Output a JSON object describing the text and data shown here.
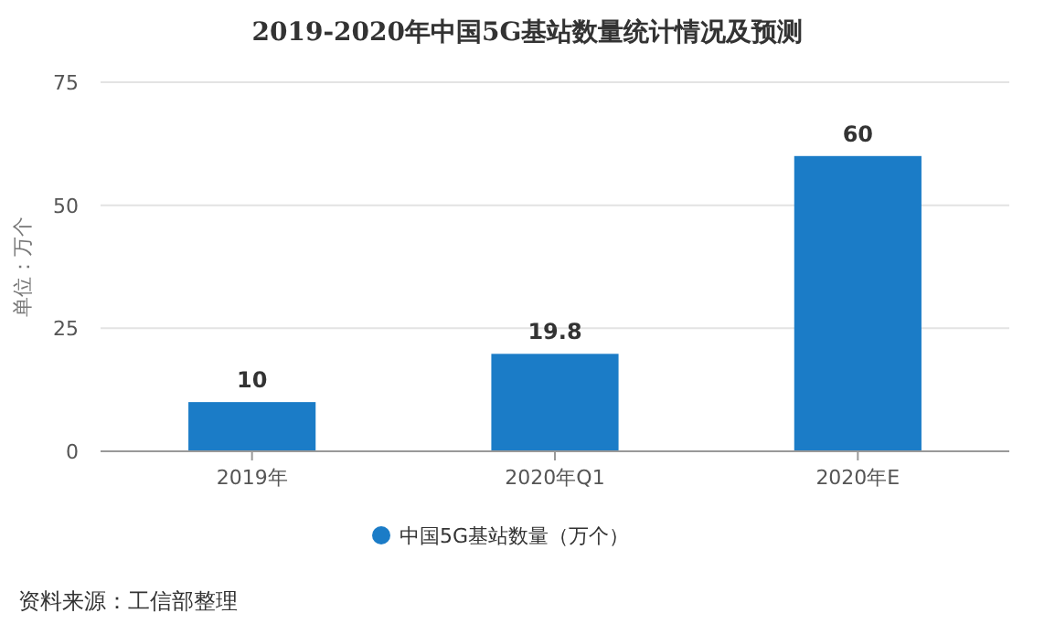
{
  "chart_data": {
    "type": "bar",
    "title": "2019-2020年中国5G基站数量统计情况及预测",
    "ylabel": "单位：万个",
    "categories": [
      "2019年",
      "2020年Q1",
      "2020年E"
    ],
    "series": [
      {
        "name": "中国5G基站数量（万个）",
        "color": "#1b7cc7",
        "values": [
          10,
          19.8,
          60
        ]
      }
    ],
    "ylim": [
      0,
      75
    ],
    "yticks": [
      0,
      25,
      50,
      75
    ],
    "grid": "y",
    "legend": "bottom",
    "data_labels": true,
    "annotations": [
      "资料来源：工信部整理"
    ]
  }
}
